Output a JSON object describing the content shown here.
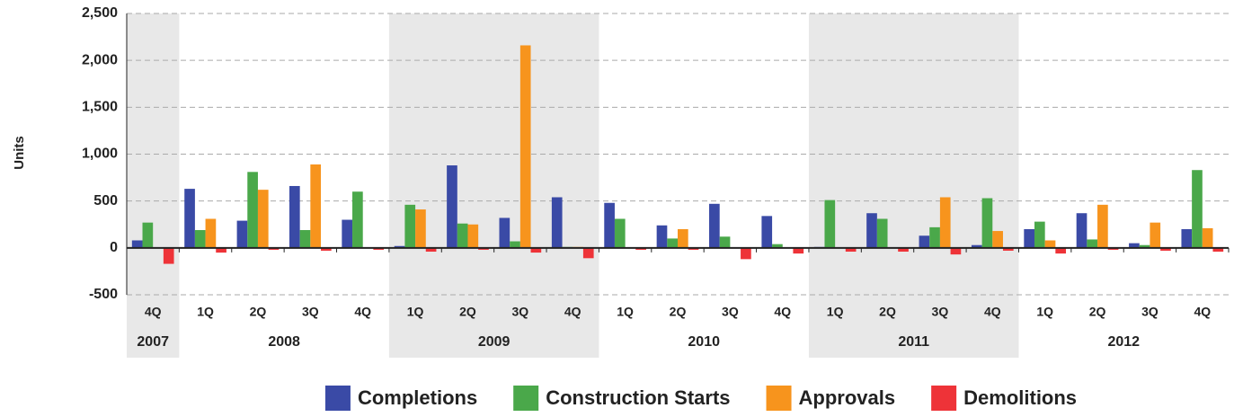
{
  "chart_data": {
    "type": "bar",
    "y_label": "Units",
    "year_groups": [
      {
        "label": "2007",
        "quarters": [
          "4Q"
        ],
        "shaded": true
      },
      {
        "label": "2008",
        "quarters": [
          "1Q",
          "2Q",
          "3Q",
          "4Q"
        ],
        "shaded": false
      },
      {
        "label": "2009",
        "quarters": [
          "1Q",
          "2Q",
          "3Q",
          "4Q"
        ],
        "shaded": true
      },
      {
        "label": "2010",
        "quarters": [
          "1Q",
          "2Q",
          "3Q",
          "4Q"
        ],
        "shaded": false
      },
      {
        "label": "2011",
        "quarters": [
          "1Q",
          "2Q",
          "3Q",
          "4Q"
        ],
        "shaded": true
      },
      {
        "label": "2012",
        "quarters": [
          "1Q",
          "2Q",
          "3Q",
          "4Q"
        ],
        "shaded": false
      }
    ],
    "series": [
      {
        "name": "Completions",
        "color": "#3a4aa6",
        "values": [
          80,
          630,
          290,
          660,
          300,
          20,
          880,
          320,
          540,
          480,
          240,
          470,
          340,
          10,
          370,
          130,
          30,
          200,
          370,
          50,
          200
        ]
      },
      {
        "name": "Construction Starts",
        "color": "#4aa84a",
        "values": [
          270,
          190,
          810,
          190,
          600,
          460,
          260,
          70,
          10,
          310,
          100,
          120,
          40,
          510,
          310,
          220,
          530,
          280,
          90,
          30,
          830
        ]
      },
      {
        "name": "Approvals",
        "color": "#f7941d",
        "values": [
          0,
          310,
          620,
          890,
          0,
          410,
          250,
          2160,
          10,
          0,
          200,
          0,
          0,
          0,
          0,
          540,
          180,
          80,
          460,
          270,
          210
        ]
      },
      {
        "name": "Demolitions",
        "color": "#ee3338",
        "values": [
          -170,
          -50,
          -20,
          -30,
          -20,
          -40,
          -20,
          -50,
          -110,
          -20,
          -20,
          -120,
          -60,
          -40,
          -40,
          -70,
          -30,
          -60,
          -20,
          -30,
          -40
        ]
      }
    ],
    "ylim": [
      -500,
      2500
    ],
    "yticks": [
      -500,
      0,
      500,
      {
        "value": 1000,
        "label": "1,000"
      },
      {
        "value": 1500,
        "label": "1,500"
      },
      {
        "value": 2000,
        "label": "2,000"
      },
      {
        "value": 2500,
        "label": "2,500"
      }
    ],
    "grid": true,
    "legend": "bottom"
  }
}
